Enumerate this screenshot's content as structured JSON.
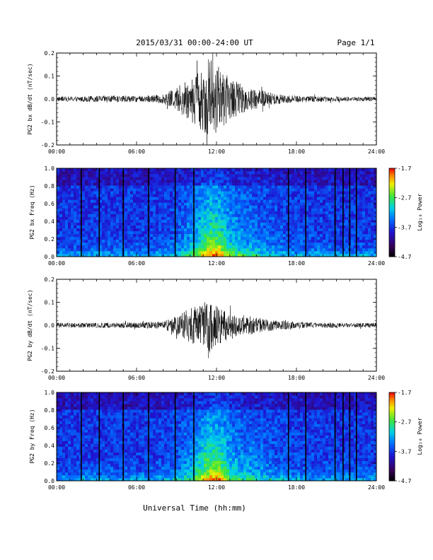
{
  "header": {
    "title": "2015/03/31  00:00-24:00 UT",
    "page": "Page 1/1"
  },
  "footer": {
    "xlabel": "Universal Time (hh:mm)"
  },
  "chart_data": [
    {
      "type": "line",
      "panel": "bx-waveform",
      "ylabel": "PG2 bx dB/dt (nT/sec)",
      "xlim_hours": [
        0,
        24
      ],
      "ylim": [
        -0.2,
        0.2
      ],
      "xticks": [
        "00:00",
        "06:00",
        "12:00",
        "18:00",
        "24:00"
      ],
      "yticks": [
        "-0.2",
        "-0.1",
        "0.0",
        "0.1",
        "0.2"
      ],
      "envelope": {
        "x_hours": [
          0,
          2,
          4,
          6,
          8,
          9,
          10,
          11,
          11.5,
          12,
          13,
          14,
          15,
          16,
          17,
          18,
          20,
          22,
          24
        ],
        "amplitude": [
          0.01,
          0.012,
          0.015,
          0.013,
          0.02,
          0.05,
          0.1,
          0.14,
          0.19,
          0.15,
          0.09,
          0.06,
          0.045,
          0.03,
          0.02,
          0.015,
          0.012,
          0.01,
          0.01
        ]
      }
    },
    {
      "type": "heatmap",
      "panel": "bx-spectrogram",
      "ylabel": "PG2 bx Freq (Hz)",
      "xlim_hours": [
        0,
        24
      ],
      "ylim": [
        0.0,
        1.0
      ],
      "xticks": [
        "00:00",
        "06:00",
        "12:00",
        "18:00",
        "24:00"
      ],
      "yticks": [
        "0.0",
        "0.2",
        "0.4",
        "0.6",
        "0.8",
        "1.0"
      ],
      "colorbar": {
        "label": "Log₁₀ Power",
        "ticks": [
          "-1.7",
          "-2.7",
          "-3.7",
          "-4.7"
        ],
        "range": [
          -4.7,
          -1.7
        ]
      },
      "gaps_hours": [
        1.85,
        3.2,
        5.0,
        6.9,
        8.9,
        10.3,
        17.4,
        18.7,
        20.9,
        21.5,
        22.0,
        22.5
      ]
    },
    {
      "type": "line",
      "panel": "by-waveform",
      "ylabel": "PG2 by dB/dt (nT/sec)",
      "xlim_hours": [
        0,
        24
      ],
      "ylim": [
        -0.2,
        0.2
      ],
      "xticks": [
        "00:00",
        "06:00",
        "12:00",
        "18:00",
        "24:00"
      ],
      "yticks": [
        "-0.2",
        "-0.1",
        "0.0",
        "0.1",
        "0.2"
      ],
      "envelope": {
        "x_hours": [
          0,
          2,
          4,
          6,
          8,
          9,
          10,
          11,
          11.5,
          12,
          13,
          14,
          15,
          16,
          17,
          18,
          20,
          22,
          24
        ],
        "amplitude": [
          0.01,
          0.01,
          0.012,
          0.012,
          0.018,
          0.04,
          0.075,
          0.1,
          0.12,
          0.09,
          0.06,
          0.045,
          0.035,
          0.025,
          0.02,
          0.015,
          0.012,
          0.01,
          0.01
        ]
      }
    },
    {
      "type": "heatmap",
      "panel": "by-spectrogram",
      "ylabel": "PG2 by Freq (Hz)",
      "xlim_hours": [
        0,
        24
      ],
      "ylim": [
        0.0,
        1.0
      ],
      "xticks": [
        "00:00",
        "06:00",
        "12:00",
        "18:00",
        "24:00"
      ],
      "yticks": [
        "0.0",
        "0.2",
        "0.4",
        "0.6",
        "0.8",
        "1.0"
      ],
      "colorbar": {
        "label": "Log₁₀ Power",
        "ticks": [
          "-1.7",
          "-2.7",
          "-3.7",
          "-4.7"
        ],
        "range": [
          -4.7,
          -1.7
        ]
      },
      "gaps_hours": [
        1.85,
        3.2,
        5.0,
        6.9,
        8.9,
        10.3,
        17.4,
        18.7,
        20.9,
        21.5,
        22.0,
        22.5
      ]
    }
  ]
}
